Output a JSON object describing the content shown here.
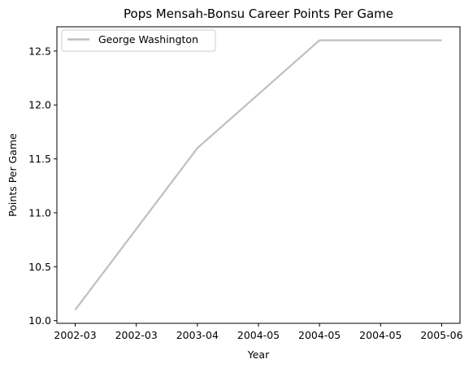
{
  "chart_data": {
    "type": "line",
    "title": "Pops Mensah-Bonsu Career Points Per Game",
    "xlabel": "Year",
    "ylabel": "Points Per Game",
    "x": [
      0,
      1,
      2,
      3,
      4,
      5,
      6
    ],
    "xticklabels": [
      "2002-03",
      "2002-03",
      "2003-04",
      "2004-05",
      "2004-05",
      "2004-05",
      "2005-06"
    ],
    "yticks": [
      10.0,
      10.5,
      11.0,
      11.5,
      12.0,
      12.5
    ],
    "yticklabels": [
      "10.0",
      "10.5",
      "11.0",
      "11.5",
      "12.0",
      "12.5"
    ],
    "ylim": [
      9.975,
      12.725
    ],
    "xlim": [
      -0.3,
      6.3
    ],
    "series": [
      {
        "name": "George Washington",
        "x": [
          0,
          2,
          4,
          6
        ],
        "values": [
          10.1,
          11.6,
          12.6,
          12.6
        ],
        "color": "#bfbfbf"
      }
    ],
    "legend": "upper left",
    "grid": false
  }
}
